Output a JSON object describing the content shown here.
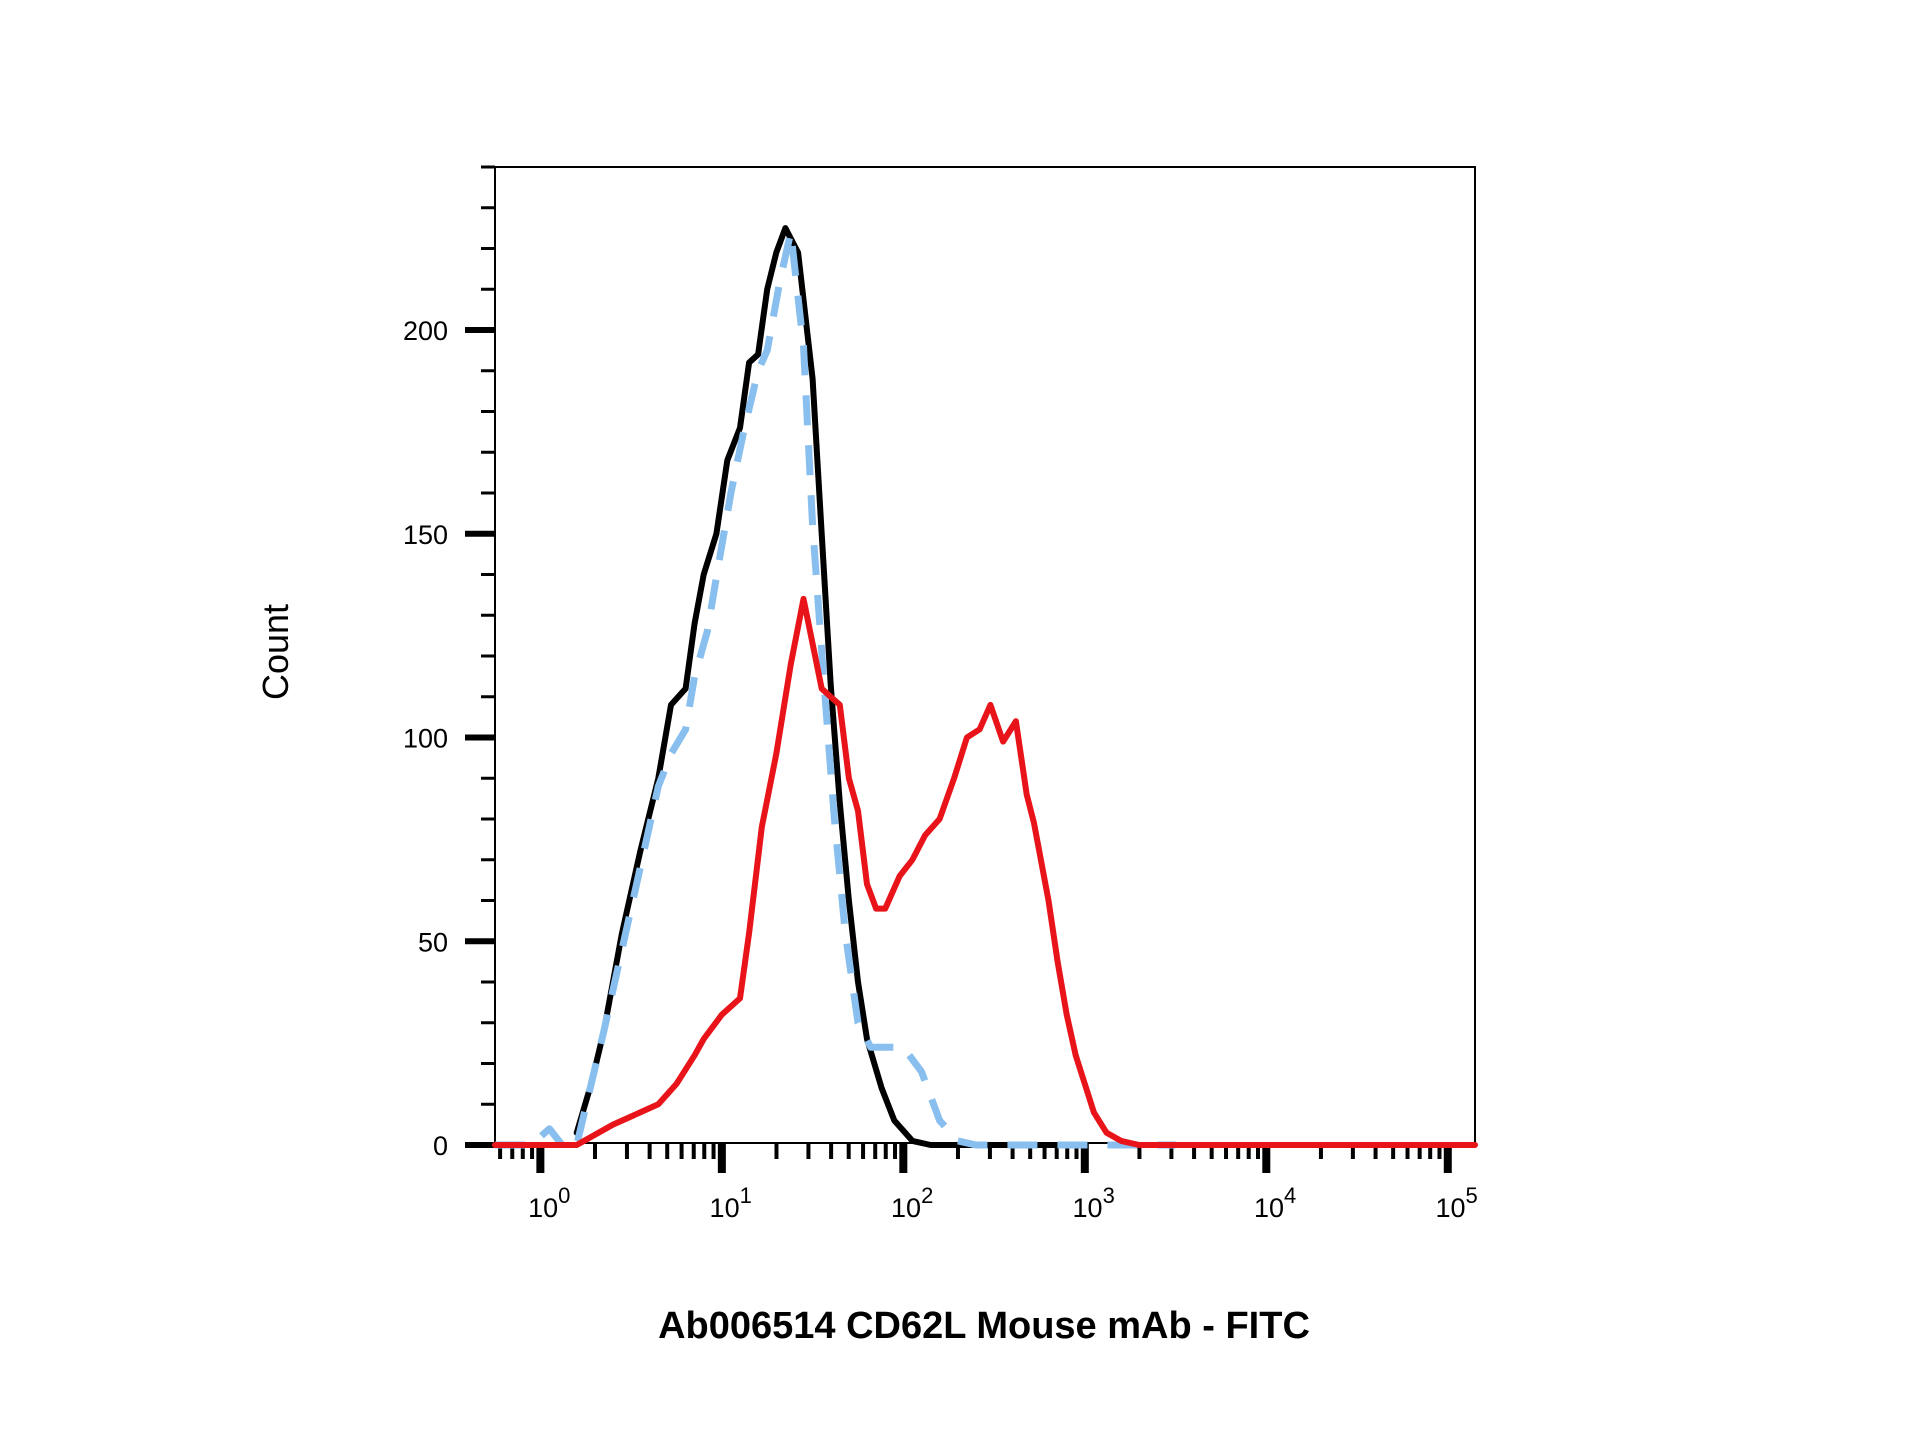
{
  "chart_data": {
    "type": "line",
    "title": "",
    "xlabel": "Ab006514 CD62L Mouse mAb - FITC",
    "ylabel": "Count",
    "x_scale": "log",
    "x_tick_labels": [
      {
        "base": "10",
        "exp": "0"
      },
      {
        "base": "10",
        "exp": "1"
      },
      {
        "base": "10",
        "exp": "2"
      },
      {
        "base": "10",
        "exp": "3"
      },
      {
        "base": "10",
        "exp": "4"
      },
      {
        "base": "10",
        "exp": "5"
      }
    ],
    "y_tick_labels": [
      "0",
      "50",
      "100",
      "150",
      "200"
    ],
    "ylim": [
      0,
      240
    ],
    "xlim_log10": [
      -0.25,
      5.15
    ],
    "legend": "none",
    "grid": false,
    "series": [
      {
        "color": "#000000",
        "style": "solid",
        "x": [
          0.2,
          0.28,
          0.35,
          0.45,
          0.55,
          0.65,
          0.72,
          0.8,
          0.85,
          0.9,
          0.97,
          1.03,
          1.1,
          1.15,
          1.2,
          1.25,
          1.3,
          1.35,
          1.42,
          1.5,
          1.55,
          1.6,
          1.65,
          1.7,
          1.75,
          1.8,
          1.88,
          1.95,
          2.05,
          2.15,
          2.25,
          2.4,
          2.6,
          2.8,
          3.0
        ],
        "y": [
          3,
          15,
          28,
          52,
          72,
          90,
          108,
          112,
          128,
          140,
          150,
          168,
          176,
          192,
          194,
          210,
          219,
          225,
          219,
          188,
          150,
          113,
          84,
          60,
          40,
          26,
          14,
          6,
          1,
          0,
          0,
          0,
          0,
          0,
          0
        ]
      },
      {
        "color": "#88bfee",
        "style": "dashed",
        "x": [
          -0.25,
          -0.05,
          0.05,
          0.12,
          0.2,
          0.28,
          0.35,
          0.45,
          0.55,
          0.65,
          0.72,
          0.8,
          0.85,
          0.92,
          0.98,
          1.05,
          1.12,
          1.2,
          1.25,
          1.32,
          1.38,
          1.45,
          1.5,
          1.56,
          1.62,
          1.68,
          1.75,
          1.82,
          1.9,
          2.0,
          2.1,
          2.2,
          2.3,
          2.4,
          2.6,
          3.0,
          3.5
        ],
        "y": [
          0,
          0,
          4,
          0,
          0,
          15,
          28,
          48,
          68,
          88,
          96,
          102,
          115,
          126,
          142,
          160,
          175,
          190,
          195,
          212,
          224,
          196,
          152,
          115,
          80,
          52,
          30,
          24,
          24,
          24,
          18,
          6,
          1,
          0,
          0,
          0,
          0
        ]
      },
      {
        "color": "#e8141a",
        "style": "solid",
        "x": [
          -0.25,
          0.2,
          0.4,
          0.55,
          0.65,
          0.75,
          0.85,
          0.9,
          1.0,
          1.1,
          1.15,
          1.22,
          1.3,
          1.38,
          1.45,
          1.55,
          1.6,
          1.65,
          1.7,
          1.75,
          1.8,
          1.85,
          1.9,
          1.98,
          2.05,
          2.12,
          2.2,
          2.28,
          2.35,
          2.42,
          2.48,
          2.55,
          2.62,
          2.68,
          2.72,
          2.8,
          2.85,
          2.9,
          2.95,
          3.0,
          3.05,
          3.12,
          3.2,
          3.3,
          3.4,
          3.55,
          3.7,
          3.8,
          3.9,
          4.0,
          5.15
        ],
        "y": [
          0,
          0,
          5,
          8,
          10,
          15,
          22,
          26,
          32,
          36,
          52,
          78,
          96,
          118,
          134,
          112,
          110,
          108,
          90,
          82,
          64,
          58,
          58,
          66,
          70,
          76,
          80,
          90,
          100,
          102,
          108,
          99,
          104,
          86,
          79,
          60,
          45,
          32,
          22,
          15,
          8,
          3,
          1,
          0,
          0,
          0,
          0,
          0,
          0,
          0,
          0
        ]
      }
    ]
  },
  "palette": {
    "axis": "#000000",
    "background": "#ffffff"
  }
}
